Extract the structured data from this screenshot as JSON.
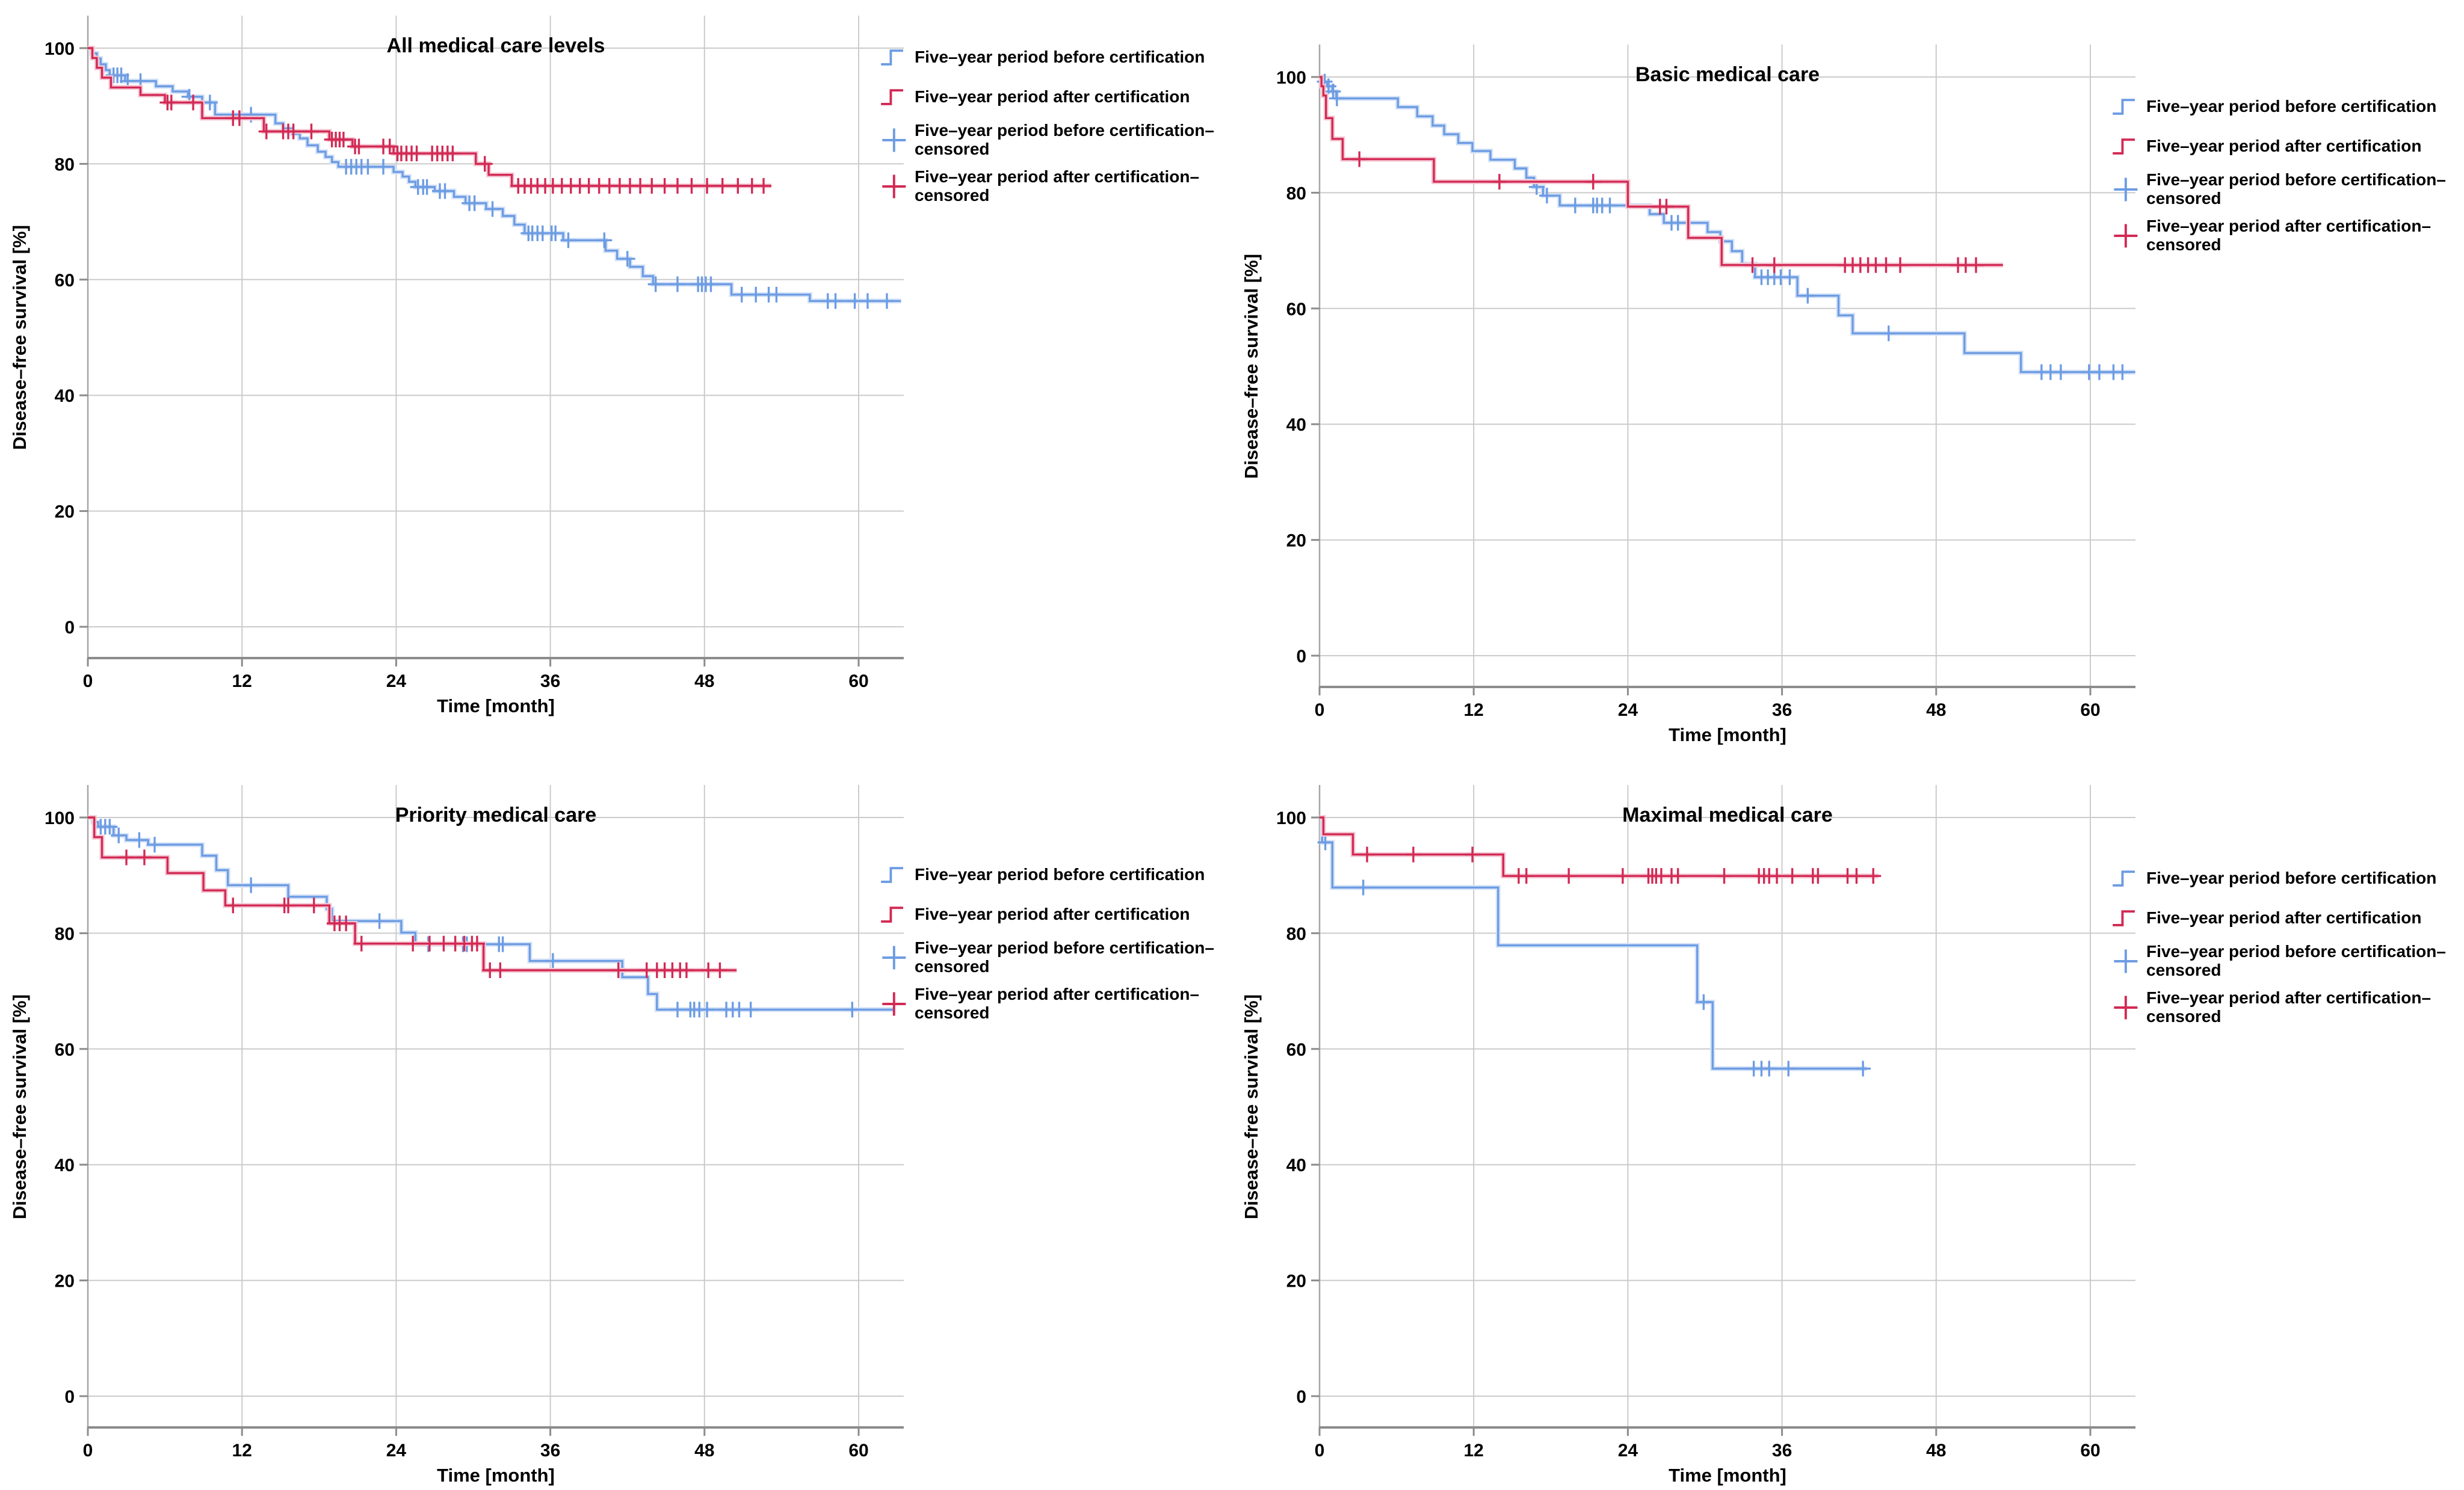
{
  "chart_data": {
    "type": "line",
    "figure_kind": "kaplan-meier step curves, 2x2 panel grid",
    "colors": {
      "before": "#6D9CE3",
      "before_halo": "#D4E2F7",
      "after": "#D22A55",
      "after_halo": "#F5C7D3",
      "grid": "#CBCBCB",
      "axis_y": "#A6A6A6",
      "axis_x": "#8C8C8C"
    },
    "axes": {
      "xlabel": "Time [month]",
      "ylabel": "Disease–free survival [%]",
      "x_ticks": [
        0,
        12,
        24,
        36,
        48,
        60
      ],
      "y_ticks": [
        0,
        20,
        40,
        60,
        80,
        100
      ],
      "xlim": [
        0,
        63.5
      ],
      "ylim": [
        0,
        100
      ],
      "grid": "on"
    },
    "legend": {
      "position": "right",
      "items": [
        {
          "label": "Five–year period before certification",
          "symbol": "step",
          "color_key": "before"
        },
        {
          "label": "Five–year period after certification",
          "symbol": "step",
          "color_key": "after"
        },
        {
          "label": "Five–year period before certification–censored",
          "symbol": "plus",
          "color_key": "before"
        },
        {
          "label": "Five–year period after certification–censored",
          "symbol": "plus",
          "color_key": "after"
        }
      ]
    },
    "panels": [
      {
        "title": "All medical care levels",
        "series": [
          {
            "name": "Five–year period before certification",
            "color_key": "before",
            "end": 63.3,
            "steps": [
              [
                0,
                100
              ],
              [
                0.3,
                99.1
              ],
              [
                0.7,
                98.2
              ],
              [
                1.0,
                97.2
              ],
              [
                1.4,
                96.2
              ],
              [
                1.7,
                95.3
              ],
              [
                2.9,
                94.3
              ],
              [
                5.3,
                93.4
              ],
              [
                6.6,
                92.5
              ],
              [
                7.8,
                91.6
              ],
              [
                8.9,
                90.6
              ],
              [
                9.9,
                88.5
              ],
              [
                14.6,
                87.0
              ],
              [
                15.2,
                86.1
              ],
              [
                15.9,
                85.2
              ],
              [
                16.5,
                84.4
              ],
              [
                17.1,
                83.2
              ],
              [
                17.9,
                82.1
              ],
              [
                18.5,
                81.2
              ],
              [
                19.0,
                80.3
              ],
              [
                19.5,
                79.5
              ],
              [
                23.8,
                78.6
              ],
              [
                24.5,
                77.8
              ],
              [
                25.0,
                76.9
              ],
              [
                25.5,
                76.0
              ],
              [
                27.0,
                75.3
              ],
              [
                28.5,
                74.3
              ],
              [
                29.4,
                73.2
              ],
              [
                31.0,
                72.2
              ],
              [
                32.3,
                71.0
              ],
              [
                33.2,
                69.5
              ],
              [
                34.0,
                68.0
              ],
              [
                37.0,
                66.8
              ],
              [
                40.3,
                65.0
              ],
              [
                41.2,
                63.6
              ],
              [
                42.2,
                62.2
              ],
              [
                43.2,
                60.6
              ],
              [
                44.0,
                59.2
              ],
              [
                50.1,
                57.4
              ],
              [
                56.2,
                56.3
              ]
            ],
            "censored": [
              2.0,
              2.3,
              2.6,
              3.1,
              4.1,
              7.9,
              9.5,
              12.7,
              20.1,
              20.5,
              20.9,
              21.3,
              21.8,
              23.0,
              25.7,
              26.1,
              26.4,
              27.4,
              27.8,
              29.7,
              30.1,
              31.5,
              34.3,
              34.6,
              35.0,
              35.4,
              36.1,
              36.4,
              37.4,
              40.2,
              42.0,
              44.2,
              45.9,
              47.5,
              47.8,
              48.1,
              48.5,
              50.9,
              52.0,
              53.0,
              53.6,
              57.6,
              58.2,
              59.7,
              60.7,
              62.2
            ]
          },
          {
            "name": "Five–year period after certification",
            "color_key": "after",
            "end": 53.2,
            "steps": [
              [
                0,
                100
              ],
              [
                0.35,
                98.3
              ],
              [
                0.7,
                96.6
              ],
              [
                1.1,
                94.9
              ],
              [
                1.8,
                93.2
              ],
              [
                4.1,
                91.9
              ],
              [
                6.0,
                90.6
              ],
              [
                8.9,
                87.9
              ],
              [
                13.7,
                85.6
              ],
              [
                18.8,
                84.2
              ],
              [
                20.6,
                83.0
              ],
              [
                23.8,
                81.8
              ],
              [
                30.2,
                80.0
              ],
              [
                31.2,
                78.1
              ],
              [
                33.0,
                76.2
              ]
            ],
            "censored": [
              6.2,
              6.5,
              8.2,
              11.3,
              11.8,
              13.9,
              15.2,
              15.6,
              16.0,
              17.4,
              19.0,
              19.3,
              19.6,
              19.9,
              20.8,
              21.1,
              23.0,
              23.5,
              24.1,
              24.4,
              24.8,
              25.2,
              25.6,
              26.8,
              27.2,
              27.6,
              28.0,
              28.4,
              30.9,
              33.5,
              34.0,
              34.5,
              35.0,
              35.6,
              36.2,
              36.9,
              37.6,
              38.3,
              39.0,
              39.8,
              40.6,
              41.4,
              42.2,
              43.0,
              43.9,
              44.9,
              45.9,
              47.0,
              48.2,
              49.4,
              50.6,
              51.7,
              52.6
            ]
          }
        ]
      },
      {
        "title": "Basic medical care",
        "series": [
          {
            "name": "Five–year period before certification",
            "color_key": "before",
            "end": 63.5,
            "steps": [
              [
                0,
                100
              ],
              [
                0.3,
                99.2
              ],
              [
                0.6,
                98.4
              ],
              [
                1.0,
                97.5
              ],
              [
                1.3,
                96.3
              ],
              [
                6.1,
                94.8
              ],
              [
                7.6,
                93.2
              ],
              [
                8.8,
                91.6
              ],
              [
                9.7,
                90.1
              ],
              [
                10.8,
                88.6
              ],
              [
                11.9,
                87.2
              ],
              [
                13.3,
                85.7
              ],
              [
                15.2,
                84.2
              ],
              [
                16.1,
                82.6
              ],
              [
                16.7,
                81.0
              ],
              [
                17.4,
                79.5
              ],
              [
                18.7,
                77.8
              ],
              [
                25.7,
                76.3
              ],
              [
                26.8,
                74.8
              ],
              [
                30.2,
                73.2
              ],
              [
                31.2,
                71.6
              ],
              [
                32.1,
                69.9
              ],
              [
                32.9,
                67.7
              ],
              [
                33.9,
                65.4
              ],
              [
                37.2,
                62.2
              ],
              [
                40.4,
                58.8
              ],
              [
                41.5,
                55.7
              ],
              [
                50.2,
                52.3
              ],
              [
                54.6,
                49.0
              ]
            ],
            "censored": [
              0.4,
              0.7,
              1.05,
              1.35,
              16.9,
              17.7,
              19.9,
              21.3,
              21.6,
              22.0,
              22.6,
              27.4,
              27.9,
              34.4,
              34.9,
              35.4,
              35.9,
              36.6,
              38.0,
              44.3,
              56.2,
              56.9,
              57.7,
              59.9,
              60.7,
              61.8,
              62.5
            ]
          },
          {
            "name": "Five–year period after certification",
            "color_key": "after",
            "end": 53.2,
            "steps": [
              [
                0,
                100
              ],
              [
                0.15,
                98.4
              ],
              [
                0.3,
                96.8
              ],
              [
                0.5,
                92.9
              ],
              [
                1.0,
                89.3
              ],
              [
                1.8,
                85.8
              ],
              [
                8.9,
                81.9
              ],
              [
                24.0,
                77.6
              ],
              [
                28.7,
                72.2
              ],
              [
                31.3,
                67.5
              ]
            ],
            "censored": [
              3.1,
              14.0,
              21.3,
              26.5,
              27.0,
              33.7,
              35.4,
              40.9,
              41.5,
              42.1,
              42.7,
              43.3,
              44.1,
              45.2,
              49.7,
              50.3,
              51.1
            ]
          }
        ]
      },
      {
        "title": "Priority medical care",
        "series": [
          {
            "name": "Five–year period before certification",
            "color_key": "before",
            "end": 62.7,
            "steps": [
              [
                0,
                100
              ],
              [
                0.4,
                99.2
              ],
              [
                0.8,
                98.4
              ],
              [
                2.0,
                96.9
              ],
              [
                3.0,
                96.1
              ],
              [
                4.7,
                95.3
              ],
              [
                8.9,
                93.4
              ],
              [
                10.0,
                90.9
              ],
              [
                10.9,
                88.3
              ],
              [
                15.6,
                86.3
              ],
              [
                18.6,
                84.2
              ],
              [
                19.0,
                82.1
              ],
              [
                24.4,
                80.1
              ],
              [
                25.5,
                78.1
              ],
              [
                34.4,
                75.2
              ],
              [
                41.6,
                72.4
              ],
              [
                43.6,
                69.5
              ],
              [
                44.3,
                66.8
              ]
            ],
            "censored": [
              1.0,
              1.35,
              1.7,
              2.4,
              4.0,
              5.2,
              12.7,
              22.7,
              26.5,
              29.2,
              29.5,
              32.0,
              32.3,
              36.2,
              45.9,
              46.9,
              47.2,
              47.6,
              48.2,
              49.7,
              50.2,
              50.7,
              51.6,
              59.5
            ]
          },
          {
            "name": "Five–year period after certification",
            "color_key": "after",
            "end": 50.5,
            "steps": [
              [
                0,
                100
              ],
              [
                0.5,
                96.6
              ],
              [
                1.1,
                93.1
              ],
              [
                6.2,
                90.4
              ],
              [
                9.0,
                87.4
              ],
              [
                10.7,
                84.8
              ],
              [
                18.8,
                81.7
              ],
              [
                20.8,
                78.2
              ],
              [
                30.8,
                73.6
              ]
            ],
            "censored": [
              3.0,
              4.4,
              11.3,
              15.3,
              15.6,
              17.6,
              19.2,
              19.6,
              20.1,
              21.3,
              25.3,
              26.6,
              27.7,
              28.6,
              29.3,
              29.9,
              30.3,
              31.3,
              32.1,
              41.3,
              43.5,
              44.3,
              44.9,
              45.5,
              46.1,
              46.6,
              48.3,
              49.2
            ]
          }
        ]
      },
      {
        "title": "Maximal medical care",
        "series": [
          {
            "name": "Five–year period before certification",
            "color_key": "before",
            "end": 42.6,
            "steps": [
              [
                0,
                100
              ],
              [
                0.2,
                95.7
              ],
              [
                1.0,
                87.9
              ],
              [
                13.9,
                77.9
              ],
              [
                29.4,
                68.1
              ],
              [
                30.6,
                56.6
              ]
            ],
            "censored": [
              0.45,
              3.4,
              29.9,
              33.8,
              34.4,
              35.0,
              36.5,
              42.3
            ]
          },
          {
            "name": "Five–year period after certification",
            "color_key": "after",
            "end": 43.5,
            "steps": [
              [
                0,
                100
              ],
              [
                0.3,
                97.1
              ],
              [
                2.6,
                93.6
              ],
              [
                14.3,
                89.9
              ]
            ],
            "censored": [
              3.7,
              7.3,
              11.9,
              15.5,
              16.1,
              19.4,
              23.6,
              25.6,
              25.9,
              26.2,
              26.6,
              27.4,
              27.9,
              31.5,
              34.2,
              34.6,
              35.0,
              35.6,
              36.8,
              38.4,
              38.8,
              41.1,
              41.8,
              43.1
            ]
          }
        ]
      }
    ]
  }
}
